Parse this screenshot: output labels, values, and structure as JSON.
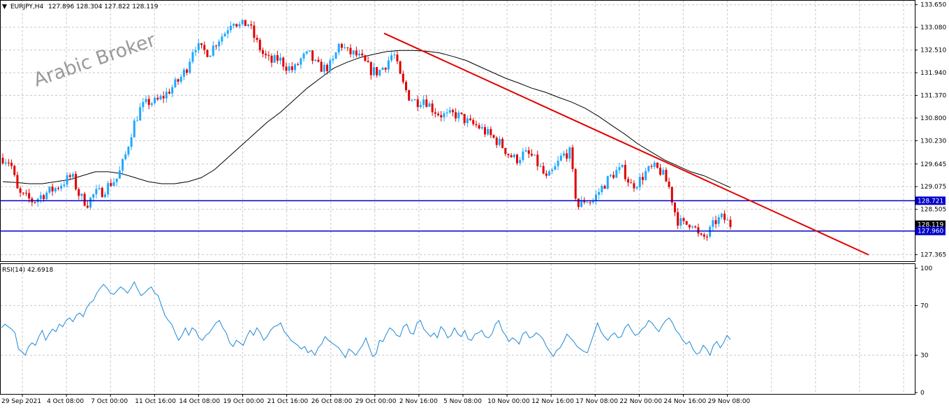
{
  "header": {
    "symbol_label": "EURJPY,H4",
    "ohlc": "127.896 128.304 127.822 128.119"
  },
  "watermark": "Arabic Broker",
  "chart_data": [
    {
      "type": "candlestick",
      "title": "EURJPY,H4",
      "ylim": [
        127.2,
        133.75
      ],
      "y_ticks": [
        "133.650",
        "133.080",
        "132.510",
        "131.940",
        "131.370",
        "130.800",
        "130.230",
        "129.645",
        "129.075",
        "128.505",
        "127.365"
      ],
      "x_ticks": [
        "29 Sep 2021",
        "4 Oct 08:00",
        "7 Oct 00:00",
        "11 Oct 16:00",
        "14 Oct 08:00",
        "19 Oct 00:00",
        "21 Oct 16:00",
        "26 Oct 08:00",
        "29 Oct 00:00",
        "2 Nov 16:00",
        "5 Nov 08:00",
        "10 Nov 00:00",
        "12 Nov 16:00",
        "17 Nov 08:00",
        "22 Nov 00:00",
        "24 Nov 16:00",
        "29 Nov 08:00"
      ],
      "close_path": [
        129.8,
        129.7,
        128.9,
        128.8,
        128.7,
        128.85,
        128.95,
        129.05,
        129.2,
        129.35,
        128.85,
        128.65,
        128.9,
        128.95,
        129.15,
        129.3,
        129.85,
        130.6,
        131.05,
        131.2,
        131.2,
        131.35,
        131.55,
        131.75,
        132.05,
        132.65,
        132.5,
        132.45,
        132.75,
        132.95,
        133.3,
        133.1,
        133.2,
        132.75,
        132.4,
        132.2,
        132.3,
        132.1,
        132.0,
        132.3,
        132.4,
        132.1,
        132.05,
        132.15,
        132.7,
        132.45,
        132.4,
        132.25,
        132.0,
        131.95,
        132.15,
        132.45,
        131.75,
        131.35,
        131.2,
        131.3,
        131.05,
        130.9,
        130.85,
        130.9,
        130.8,
        130.65,
        130.6,
        130.45,
        130.3,
        130.15,
        129.9,
        129.75,
        129.9,
        129.85,
        129.6,
        129.25,
        129.5,
        129.85,
        129.95,
        128.55,
        128.75,
        128.7,
        129.0,
        129.25,
        129.45,
        129.5,
        129.1,
        129.2,
        129.45,
        129.55,
        129.45,
        129.05,
        128.25,
        128.1,
        128.2,
        127.75,
        127.85,
        128.2,
        128.3,
        128.119
      ],
      "moving_average": [
        129.2,
        129.18,
        129.15,
        129.15,
        129.2,
        129.25,
        129.35,
        129.45,
        129.45,
        129.4,
        129.3,
        129.2,
        129.15,
        129.15,
        129.2,
        129.3,
        129.5,
        129.8,
        130.1,
        130.4,
        130.7,
        130.95,
        131.25,
        131.55,
        131.8,
        132.05,
        132.2,
        132.32,
        132.4,
        132.47,
        132.5,
        132.5,
        132.48,
        132.44,
        132.35,
        132.25,
        132.1,
        131.95,
        131.8,
        131.68,
        131.55,
        131.45,
        131.32,
        131.2,
        131.05,
        130.85,
        130.62,
        130.4,
        130.15,
        129.95,
        129.75,
        129.6,
        129.45,
        129.35,
        129.2,
        129.05
      ],
      "resistance_line": 128.721,
      "price_line": 127.96,
      "price_labels": [
        "128.721",
        "128.119",
        "127.960"
      ],
      "trendline": {
        "start": [
          "29 Oct 00:00",
          132.93
        ],
        "end": [
          "29 Nov 08:00+",
          127.36
        ],
        "color": "#e00000"
      },
      "colors": {
        "bull": "#1fa8ff",
        "bear": "#e00000",
        "hline": "#0000c8",
        "ma": "#000000"
      }
    },
    {
      "type": "line",
      "title": "RSI(14) 42.6918",
      "ylim": [
        0,
        100
      ],
      "y_ticks": [
        "100",
        "70",
        "30",
        "0"
      ],
      "values": [
        52,
        55,
        53,
        51,
        48,
        35,
        33,
        30,
        37,
        40,
        38,
        45,
        50,
        42,
        47,
        51,
        49,
        55,
        53,
        58,
        60,
        57,
        62,
        64,
        61,
        68,
        72,
        74,
        80,
        84,
        87,
        84,
        80,
        79,
        82,
        85,
        83,
        80,
        84,
        89,
        83,
        78,
        80,
        83,
        85,
        80,
        78,
        70,
        62,
        58,
        55,
        48,
        42,
        46,
        52,
        46,
        52,
        50,
        44,
        42,
        46,
        48,
        52,
        56,
        58,
        52,
        48,
        40,
        37,
        42,
        40,
        38,
        45,
        50,
        46,
        52,
        48,
        42,
        45,
        50,
        53,
        54,
        56,
        49,
        46,
        42,
        40,
        38,
        35,
        37,
        32,
        34,
        30,
        36,
        39,
        45,
        42,
        40,
        38,
        36,
        32,
        28,
        35,
        33,
        30,
        34,
        38,
        44,
        36,
        29,
        31,
        42,
        41,
        47,
        52,
        50,
        46,
        45,
        53,
        55,
        48,
        47,
        56,
        58,
        51,
        48,
        45,
        48,
        44,
        53,
        50,
        44,
        46,
        52,
        47,
        45,
        50,
        43,
        42,
        47,
        48,
        50,
        45,
        44,
        47,
        55,
        58,
        50,
        46,
        41,
        44,
        42,
        39,
        47,
        49,
        44,
        45,
        48,
        46,
        43,
        37,
        33,
        29,
        34,
        36,
        41,
        47,
        44,
        41,
        37,
        35,
        33,
        32,
        40,
        48,
        56,
        49,
        45,
        42,
        46,
        48,
        44,
        45,
        52,
        55,
        50,
        46,
        47,
        51,
        53,
        58,
        56,
        52,
        49,
        54,
        58,
        60,
        56,
        50,
        47,
        42,
        39,
        41,
        35,
        31,
        32,
        38,
        35,
        30,
        38,
        41,
        36,
        40,
        46,
        42.69
      ],
      "color": "#1e88d6"
    }
  ]
}
